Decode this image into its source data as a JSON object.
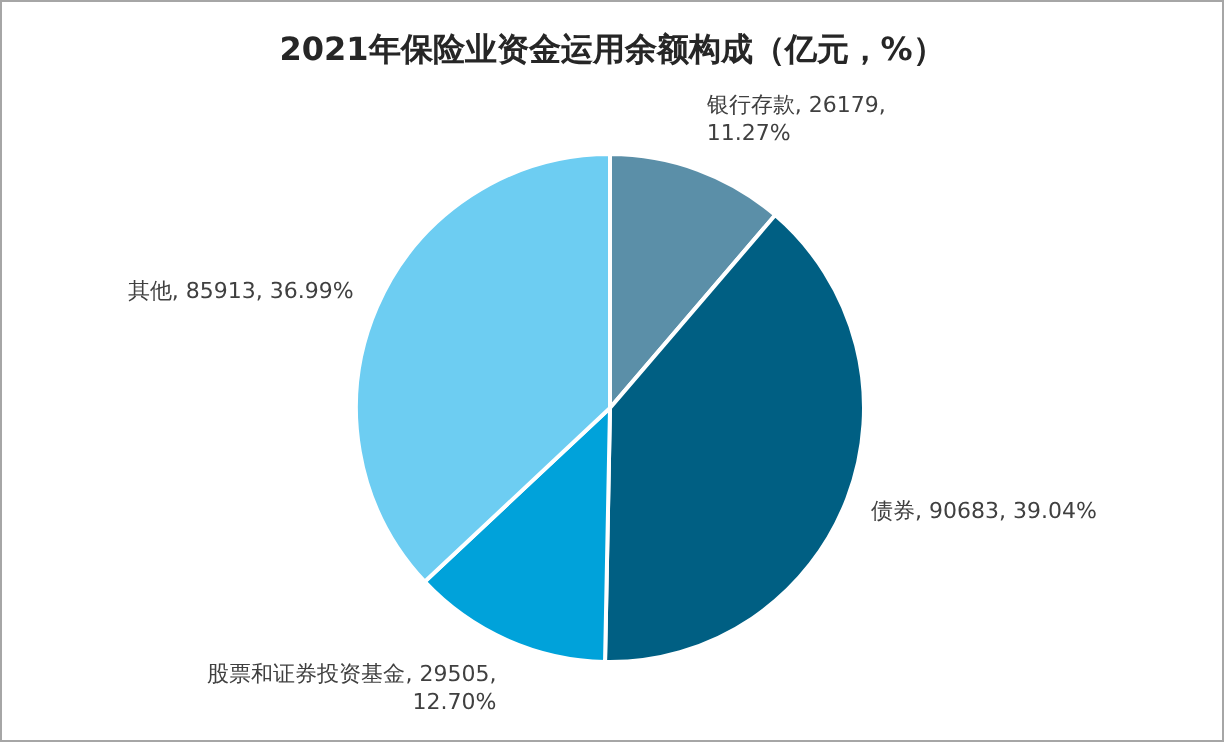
{
  "chart_data": {
    "type": "pie",
    "title": "2021年保险业资金运用余额构成（亿元，%）",
    "categories": [
      "银行存款",
      "债券",
      "股票和证券投资基金",
      "其他"
    ],
    "values": [
      26179,
      90683,
      29505,
      85913
    ],
    "colors": [
      "#5b8fa8",
      "#005f83",
      "#00a2da",
      "#6dcdf2"
    ],
    "value_labels": [
      "26179, 11.27%",
      "90683, 39.04%",
      "29505, 12.70%",
      "85913, 36.99%"
    ]
  }
}
